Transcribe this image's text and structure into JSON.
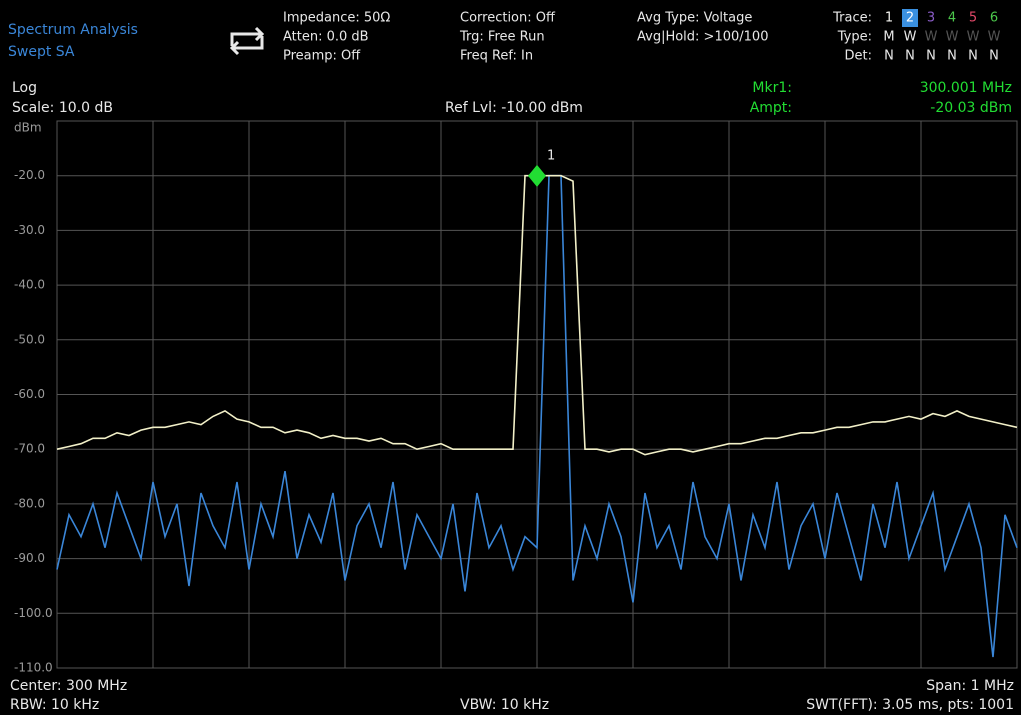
{
  "header": {
    "app": "Spectrum Analysis",
    "mode": "Swept SA",
    "col1": [
      "Impedance: 50Ω",
      "Atten: 0.0 dB",
      "Preamp: Off"
    ],
    "col2": [
      "Correction: Off",
      "Trg: Free Run",
      "Freq Ref: In"
    ],
    "col3": [
      "Avg Type: Voltage",
      "Avg|Hold: >100/100"
    ],
    "trace_label": "Trace:",
    "type_label": "Type:",
    "det_label": "Det:",
    "traces": [
      {
        "number": "1",
        "type": "M",
        "det": "N",
        "color": "#f4f4f0"
      },
      {
        "number": "2",
        "type": "W",
        "det": "N",
        "color": "#3a90e0"
      },
      {
        "number": "3",
        "type": "W",
        "det": "N",
        "color": "#8a5cc8"
      },
      {
        "number": "4",
        "type": "W",
        "det": "N",
        "color": "#4cc84c"
      },
      {
        "number": "5",
        "type": "W",
        "det": "N",
        "color": "#e04868"
      },
      {
        "number": "6",
        "type": "W",
        "det": "N",
        "color": "#4cc84c"
      }
    ]
  },
  "status": {
    "scale_type": "Log",
    "scale": "Scale: 10.0 dB",
    "ref_level": "Ref Lvl: -10.00 dBm",
    "marker_label": "Mkr1:",
    "marker_freq": "300.001 MHz",
    "ampt_label": "Ampt:",
    "marker_ampt": "-20.03 dBm"
  },
  "marker": {
    "label": "1",
    "amplitude": -20.03,
    "color": "#22dd33"
  },
  "footer": {
    "center": "Center: 300 MHz",
    "rbw": "RBW: 10 kHz",
    "vbw": "VBW: 10 kHz",
    "span": "Span: 1 MHz",
    "sweep": "SWT(FFT): 3.05 ms, pts: 1001"
  },
  "chart_data": {
    "type": "line",
    "ylim": [
      -110,
      -10
    ],
    "grid": true,
    "yticks": [
      {
        "value": -10,
        "label": "dBm"
      },
      {
        "value": -20,
        "label": "-20.0"
      },
      {
        "value": -30,
        "label": "-30.0"
      },
      {
        "value": -40,
        "label": "-40.0"
      },
      {
        "value": -50,
        "label": "-50.0"
      },
      {
        "value": -60,
        "label": "-60.0"
      },
      {
        "value": -70,
        "label": "-70.0"
      },
      {
        "value": -80,
        "label": "-80.0"
      },
      {
        "value": -90,
        "label": "-90.0"
      },
      {
        "value": -100,
        "label": "-100.0"
      },
      {
        "value": -110,
        "label": "-110.0"
      }
    ],
    "series": [
      {
        "color": "#3a86d8",
        "values": [
          -92,
          -82,
          -86,
          -80,
          -88,
          -78,
          -84,
          -90,
          -76,
          -86,
          -80,
          -95,
          -78,
          -84,
          -88,
          -76,
          -92,
          -80,
          -86,
          -74,
          -90,
          -82,
          -87,
          -78,
          -94,
          -84,
          -80,
          -88,
          -76,
          -92,
          -82,
          -86,
          -90,
          -80,
          -96,
          -78,
          -88,
          -84,
          -92,
          -86,
          -88,
          -20,
          -20,
          -94,
          -84,
          -90,
          -80,
          -86,
          -98,
          -78,
          -88,
          -84,
          -92,
          -76,
          -86,
          -90,
          -80,
          -94,
          -82,
          -88,
          -76,
          -92,
          -84,
          -80,
          -90,
          -78,
          -86,
          -94,
          -80,
          -88,
          -76,
          -90,
          -84,
          -78,
          -92,
          -86,
          -80,
          -88,
          -108,
          -82,
          -88
        ]
      },
      {
        "color": "#f2f0c8",
        "values": [
          -70,
          -69.5,
          -69,
          -68,
          -68,
          -67,
          -67.5,
          -66.5,
          -66,
          -66,
          -65.5,
          -65,
          -65.5,
          -64,
          -63,
          -64.5,
          -65,
          -66,
          -66,
          -67,
          -66.5,
          -67,
          -68,
          -67.5,
          -68,
          -68,
          -68.5,
          -68,
          -69,
          -69,
          -70,
          -69.5,
          -69,
          -70,
          -70,
          -70,
          -70,
          -70,
          -70,
          -20,
          -20,
          -20,
          -20,
          -21,
          -70,
          -70,
          -70.5,
          -70,
          -70,
          -71,
          -70.5,
          -70,
          -70,
          -70.5,
          -70,
          -69.5,
          -69,
          -69,
          -68.5,
          -68,
          -68,
          -67.5,
          -67,
          -67,
          -66.5,
          -66,
          -66,
          -65.5,
          -65,
          -65,
          -64.5,
          -64,
          -64.5,
          -63.5,
          -64,
          -63,
          -64,
          -64.5,
          -65,
          -65.5,
          -66
        ]
      }
    ]
  }
}
